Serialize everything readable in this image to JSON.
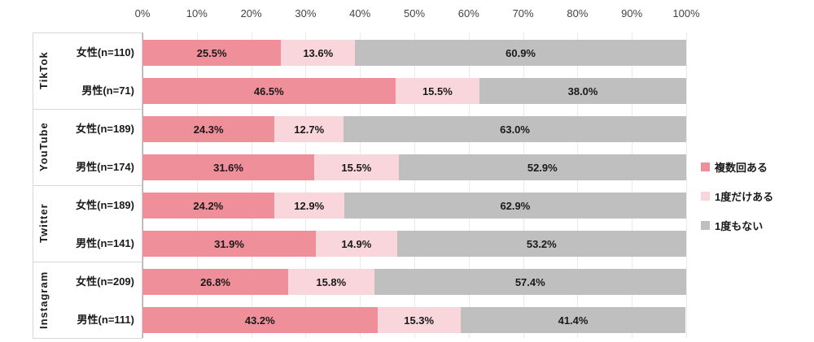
{
  "chart_data": {
    "type": "bar",
    "stacked": true,
    "orientation": "horizontal",
    "title": "",
    "xlabel": "",
    "ylabel": "",
    "xlim": [
      0,
      100
    ],
    "grid": true,
    "legend_position": "right",
    "x_ticks": [
      "0%",
      "10%",
      "20%",
      "30%",
      "40%",
      "50%",
      "60%",
      "70%",
      "80%",
      "90%",
      "100%"
    ],
    "series": [
      {
        "name": "複数回ある",
        "color": "#ef8f9a"
      },
      {
        "name": "1度だけある",
        "color": "#f8d6db"
      },
      {
        "name": "1度もない",
        "color": "#bfbfbf"
      }
    ],
    "groups": [
      {
        "platform": "TikTok",
        "rows": [
          {
            "label": "女性(n=110)",
            "values": [
              25.5,
              13.6,
              60.9
            ]
          },
          {
            "label": "男性(n=71)",
            "values": [
              46.5,
              15.5,
              38.0
            ]
          }
        ]
      },
      {
        "platform": "YouTube",
        "rows": [
          {
            "label": "女性(n=189)",
            "values": [
              24.3,
              12.7,
              63.0
            ]
          },
          {
            "label": "男性(n=174)",
            "values": [
              31.6,
              15.5,
              52.9
            ]
          }
        ]
      },
      {
        "platform": "Twitter",
        "rows": [
          {
            "label": "女性(n=189)",
            "values": [
              24.2,
              12.9,
              62.9
            ]
          },
          {
            "label": "男性(n=141)",
            "values": [
              31.9,
              14.9,
              53.2
            ]
          }
        ]
      },
      {
        "platform": "Instagram",
        "rows": [
          {
            "label": "女性(n=209)",
            "values": [
              26.8,
              15.8,
              57.4
            ]
          },
          {
            "label": "男性(n=111)",
            "values": [
              43.2,
              15.3,
              41.4
            ]
          }
        ]
      }
    ],
    "legend": [
      {
        "label": "複数回ある",
        "color": "#ef8f9a"
      },
      {
        "label": "1度だけある",
        "color": "#f8d6db"
      },
      {
        "label": "1度もない",
        "color": "#bfbfbf"
      }
    ],
    "value_suffix": "%"
  },
  "colors": {
    "gridline": "#e9e9e9",
    "axis_line": "#a6a6a6",
    "tick_text": "#444444",
    "label_text": "#1a1a1a",
    "box_border": "#d6d6d6"
  }
}
